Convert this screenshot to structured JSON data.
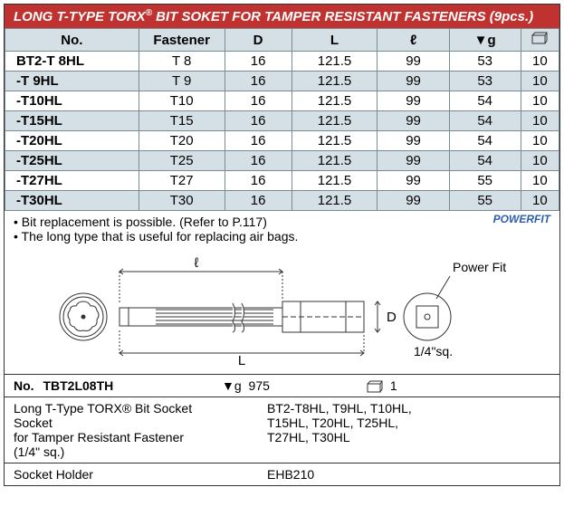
{
  "title": {
    "prefix": "LONG T-TYPE ",
    "torx": "TORX",
    "reg": "®",
    "suffix": " BIT SOKET FOR TAMPER RESISTANT FASTENERS (9pcs.)"
  },
  "table": {
    "headers": {
      "no": "No.",
      "fastener": "Fastener",
      "D": "D",
      "L": "L",
      "l": "ℓ",
      "g": "g",
      "pkg": ""
    },
    "rows": [
      {
        "no": "BT2-T 8HL",
        "fastener": "T 8",
        "D": "16",
        "L": "121.5",
        "l": "99",
        "g": "53",
        "pkg": "10",
        "alt": false
      },
      {
        "no": "-T 9HL",
        "fastener": "T 9",
        "D": "16",
        "L": "121.5",
        "l": "99",
        "g": "53",
        "pkg": "10",
        "alt": true
      },
      {
        "no": "-T10HL",
        "fastener": "T10",
        "D": "16",
        "L": "121.5",
        "l": "99",
        "g": "54",
        "pkg": "10",
        "alt": false
      },
      {
        "no": "-T15HL",
        "fastener": "T15",
        "D": "16",
        "L": "121.5",
        "l": "99",
        "g": "54",
        "pkg": "10",
        "alt": true
      },
      {
        "no": "-T20HL",
        "fastener": "T20",
        "D": "16",
        "L": "121.5",
        "l": "99",
        "g": "54",
        "pkg": "10",
        "alt": false
      },
      {
        "no": "-T25HL",
        "fastener": "T25",
        "D": "16",
        "L": "121.5",
        "l": "99",
        "g": "54",
        "pkg": "10",
        "alt": true
      },
      {
        "no": "-T27HL",
        "fastener": "T27",
        "D": "16",
        "L": "121.5",
        "l": "99",
        "g": "55",
        "pkg": "10",
        "alt": false
      },
      {
        "no": "-T30HL",
        "fastener": "T30",
        "D": "16",
        "L": "121.5",
        "l": "99",
        "g": "55",
        "pkg": "10",
        "alt": true
      }
    ]
  },
  "notes": {
    "line1": "• Bit replacement is possible. (Refer to P.117)",
    "line2": "• The long type that is useful for replacing air bags.",
    "powerfit": "POWERFIT"
  },
  "diagram": {
    "l_label": "ℓ",
    "L_label": "L",
    "D_label": "D",
    "powerfit_label": "Power Fit",
    "sq_label": "1/4\"sq."
  },
  "info": {
    "no_label": "No.",
    "no_value": "TBT2L08TH",
    "g_label": "g",
    "g_value": "975",
    "pkg_value": "1",
    "desc_line1": "Long T-Type TORX® Bit Socket Socket",
    "desc_line2": "for Tamper Resistant Fastener (1/4\" sq.)",
    "parts_line1": "BT2-T8HL, T9HL, T10HL,",
    "parts_line2": "T15HL, T20HL, T25HL,",
    "parts_line3": "T27HL, T30HL",
    "holder_label": "Socket Holder",
    "holder_value": "EHB210"
  },
  "colors": {
    "titlebar": "#c0322f",
    "header_bg": "#d4e0e6",
    "border": "#7a8a92"
  }
}
